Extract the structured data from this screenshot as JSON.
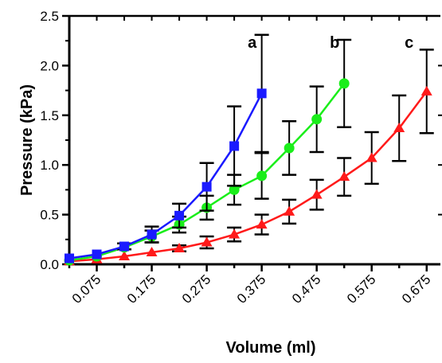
{
  "chart_data": {
    "type": "line",
    "title": "",
    "xlabel": "Volume (ml)",
    "ylabel": "Pressure (kPa)",
    "xlim": [
      0.025,
      0.7
    ],
    "ylim": [
      0,
      2.5
    ],
    "x_ticks": [
      "0.075",
      "0.175",
      "0.275",
      "0.375",
      "0.475",
      "0.575",
      "0.675"
    ],
    "x_tick_values": [
      0.075,
      0.175,
      0.275,
      0.375,
      0.475,
      0.575,
      0.675
    ],
    "y_ticks": [
      "0.0",
      "0.5",
      "1.0",
      "1.5",
      "2.0",
      "2.5"
    ],
    "y_tick_values": [
      0,
      0.5,
      1.0,
      1.5,
      2.0,
      2.5
    ],
    "grid": false,
    "annotations": [
      "a",
      "b",
      "c"
    ],
    "series": [
      {
        "label": "a",
        "color": "#1a1aff",
        "marker": "square",
        "x": [
          0.025,
          0.075,
          0.125,
          0.175,
          0.225,
          0.275,
          0.325,
          0.375
        ],
        "y": [
          0.06,
          0.1,
          0.18,
          0.3,
          0.49,
          0.78,
          1.19,
          1.72
        ],
        "err": [
          0.0,
          0.0,
          0.03,
          0.08,
          0.12,
          0.24,
          0.4,
          0.59
        ]
      },
      {
        "label": "b",
        "color": "#1aee1a",
        "marker": "circle",
        "x": [
          0.025,
          0.075,
          0.125,
          0.175,
          0.225,
          0.275,
          0.325,
          0.375,
          0.425,
          0.475,
          0.525
        ],
        "y": [
          0.04,
          0.08,
          0.17,
          0.28,
          0.4,
          0.57,
          0.75,
          0.89,
          1.17,
          1.46,
          1.82
        ],
        "err": [
          0.0,
          0.0,
          0.0,
          0.06,
          0.08,
          0.12,
          0.15,
          0.23,
          0.27,
          0.33,
          0.44
        ]
      },
      {
        "label": "c",
        "color": "#ff1a1a",
        "marker": "triangle",
        "x": [
          0.025,
          0.075,
          0.125,
          0.175,
          0.225,
          0.275,
          0.325,
          0.375,
          0.425,
          0.475,
          0.525,
          0.575,
          0.625,
          0.675
        ],
        "y": [
          0.03,
          0.05,
          0.08,
          0.12,
          0.16,
          0.22,
          0.3,
          0.4,
          0.53,
          0.7,
          0.88,
          1.07,
          1.37,
          1.74
        ],
        "err": [
          0.0,
          0.0,
          0.0,
          0.0,
          0.03,
          0.06,
          0.07,
          0.1,
          0.12,
          0.15,
          0.19,
          0.26,
          0.33,
          0.42
        ]
      }
    ]
  }
}
